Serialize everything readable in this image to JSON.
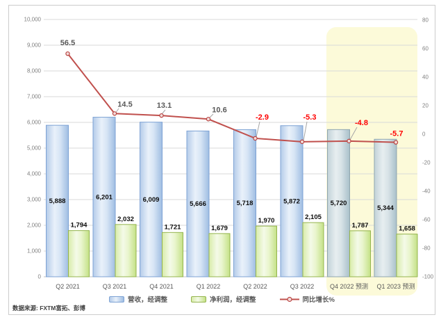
{
  "chart_data": {
    "type": "combo",
    "categories": [
      "Q2 2021",
      "Q3 2021",
      "Q4 2021",
      "Q1 2022",
      "Q2 2022",
      "Q3 2022",
      "Q4 2022 预测",
      "Q1 2023 预测"
    ],
    "series": [
      {
        "name": "营收，经调整",
        "type": "bar",
        "axis": "left",
        "values": [
          5888,
          6201,
          6009,
          5666,
          5718,
          5872,
          5720,
          5344
        ],
        "labels": [
          "5,888",
          "6,201",
          "6,009",
          "5,666",
          "5,718",
          "5,872",
          "5,720",
          "5,344"
        ]
      },
      {
        "name": "净利润，经调整",
        "type": "bar",
        "axis": "left",
        "values": [
          1794,
          2032,
          1721,
          1679,
          1970,
          2105,
          1787,
          1658
        ],
        "labels": [
          "1,794",
          "2,032",
          "1,721",
          "1,679",
          "1,970",
          "2,105",
          "1,787",
          "1,658"
        ]
      },
      {
        "name": "同比增长%",
        "type": "line",
        "axis": "right",
        "values": [
          56.5,
          14.5,
          13.1,
          10.6,
          -2.9,
          -5.3,
          -4.8,
          -5.7
        ],
        "labels": [
          "56.5",
          "14.5",
          "13.1",
          "10.6",
          "-2.9",
          "-5.3",
          "-4.8",
          "-5.7"
        ]
      }
    ],
    "left_axis": {
      "min": 0,
      "max": 10000,
      "step": 1000,
      "tick_labels": [
        "0",
        "1,000",
        "2,000",
        "3,000",
        "4,000",
        "5,000",
        "6,000",
        "7,000",
        "8,000",
        "9,000",
        "10,000"
      ]
    },
    "right_axis": {
      "min": -100,
      "max": 80,
      "step": 20,
      "tick_labels": [
        "80",
        "60",
        "40",
        "20",
        "0",
        "-20",
        "-40",
        "-60",
        "-80",
        "-100"
      ]
    },
    "grid": true,
    "legend_position": "bottom",
    "highlight_region": {
      "start_category_index": 6,
      "label": "预测"
    }
  },
  "source_note": "数据来源: FXTM富拓、彭博",
  "colors": {
    "revenue_fill": [
      "#b4cbe9",
      "#e9f1fa",
      "#d7e5f5",
      "#9fbde2"
    ],
    "revenue_border": "#7da2d4",
    "revenue_forecast_fill": [
      "#c2d2d8",
      "#e7eef0",
      "#d8e3e7",
      "#a9c0ca"
    ],
    "revenue_forecast_border": "#8fa6b0",
    "profit_fill": [
      "#d8eca9",
      "#f4fae8",
      "#e9f5cd",
      "#c4e186"
    ],
    "profit_border": "#94b44e",
    "line": "#c0504d",
    "marker_fill": "#f2dcdb",
    "marker_border": "#b94441",
    "label_positive": "#595959",
    "label_negative": "#ff0000",
    "highlight_bg": "#fcfad9",
    "grid": "#d9d9d9",
    "axis_line": "#c0c0c0",
    "tick_text": "#808080",
    "category_text": "#595959",
    "bar_label_text": "#0d0d0d"
  }
}
